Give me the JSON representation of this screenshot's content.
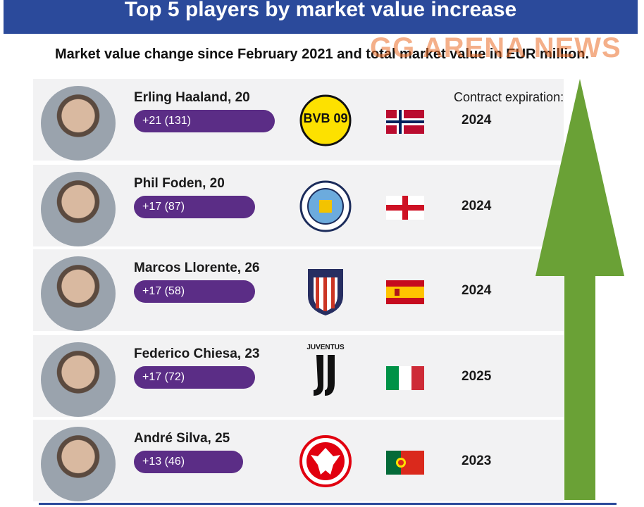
{
  "header": {
    "title": "Top 5 players by market value increase",
    "subtitle": "Market value change since February 2021 and total market value in EUR million."
  },
  "watermark": "GG ARENA NEWS",
  "contract_label": "Contract expiration:",
  "players": [
    {
      "name": "Erling Haaland, 20",
      "change": "+21 (131)",
      "contract": "2024",
      "club_text": "BVB 09"
    },
    {
      "name": "Phil Foden, 20",
      "change": "+17 (87)",
      "contract": "2024"
    },
    {
      "name": "Marcos Llorente, 26",
      "change": "+17 (58)",
      "contract": "2024"
    },
    {
      "name": "Federico Chiesa, 23",
      "change": "+17 (72)",
      "contract": "2025",
      "club_text": "JUVENTUS"
    },
    {
      "name": "André Silva, 25",
      "change": "+13 (46)",
      "contract": "2023"
    }
  ]
}
